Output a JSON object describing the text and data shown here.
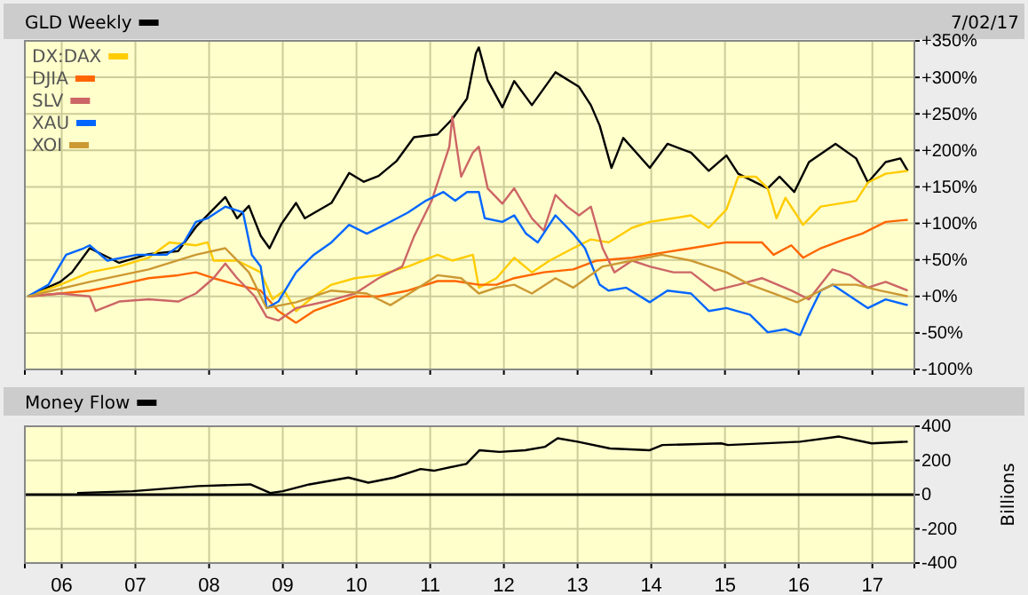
{
  "chart_data": [
    {
      "type": "line",
      "annotations": [
        "7/02/17"
      ],
      "legend": "top left",
      "grid": true,
      "tick_labels": "y",
      "xlim": [
        2005.5,
        2017.57
      ],
      "ylim": [
        -100,
        350
      ],
      "xticks": [
        2006,
        2007,
        2008,
        2009,
        2010,
        2011,
        2012,
        2013,
        2014,
        2015,
        2016,
        2017
      ],
      "yticks": [
        {
          "value": -100,
          "label": "-100%"
        },
        {
          "value": -50,
          "label": "-50%"
        },
        {
          "value": 0,
          "label": "+0%"
        },
        {
          "value": 50,
          "label": "+50%"
        },
        {
          "value": 100,
          "label": "+100%"
        },
        {
          "value": 150,
          "label": "+150%"
        },
        {
          "value": 200,
          "label": "+200%"
        },
        {
          "value": 250,
          "label": "+250%"
        },
        {
          "value": 300,
          "label": "+300%"
        },
        {
          "value": 350,
          "label": "+350%"
        }
      ],
      "series": [
        {
          "name": "GLD Weekly",
          "color": "#000000",
          "x": [
            2005.54,
            2005.98,
            2006.14,
            2006.38,
            2006.78,
            2007.18,
            2007.58,
            2007.82,
            2008.22,
            2008.38,
            2008.54,
            2008.7,
            2008.82,
            2008.98,
            2009.18,
            2009.3,
            2009.66,
            2009.9,
            2010.1,
            2010.3,
            2010.54,
            2010.78,
            2011.1,
            2011.3,
            2011.5,
            2011.62,
            2011.66,
            2011.78,
            2011.98,
            2012.14,
            2012.38,
            2012.7,
            2013.02,
            2013.18,
            2013.3,
            2013.46,
            2013.62,
            2013.98,
            2014.22,
            2014.54,
            2014.78,
            2015.02,
            2015.18,
            2015.58,
            2015.74,
            2015.94,
            2016.14,
            2016.5,
            2016.78,
            2016.94,
            2017.18,
            2017.38,
            2017.48
          ],
          "values": [
            0,
            20,
            33,
            66,
            46,
            58,
            62,
            95,
            136,
            107,
            124,
            83,
            66,
            99,
            128,
            107,
            128,
            169,
            157,
            165,
            185,
            218,
            222,
            243,
            271,
            333,
            341,
            296,
            259,
            295,
            262,
            307,
            287,
            262,
            234,
            176,
            217,
            176,
            209,
            197,
            172,
            193,
            168,
            148,
            164,
            143,
            184,
            209,
            189,
            156,
            184,
            189,
            172
          ]
        },
        {
          "name": "DX:DAX",
          "color": "#ffcc00",
          "x": [
            2005.54,
            2005.98,
            2006.38,
            2006.78,
            2007.18,
            2007.46,
            2007.82,
            2007.98,
            2008.06,
            2008.38,
            2008.7,
            2008.86,
            2009.02,
            2009.18,
            2009.42,
            2009.66,
            2009.98,
            2010.3,
            2010.7,
            2011.1,
            2011.3,
            2011.58,
            2011.66,
            2011.9,
            2012.14,
            2012.38,
            2012.62,
            2012.94,
            2013.18,
            2013.42,
            2013.74,
            2013.98,
            2014.3,
            2014.54,
            2014.78,
            2015.02,
            2015.18,
            2015.42,
            2015.58,
            2015.7,
            2015.82,
            2016.06,
            2016.3,
            2016.54,
            2016.78,
            2016.94,
            2017.18,
            2017.48
          ],
          "values": [
            0,
            16,
            33,
            41,
            53,
            74,
            70,
            74,
            49,
            49,
            33,
            -4,
            8,
            -20,
            0,
            16,
            25,
            29,
            41,
            57,
            49,
            57,
            12,
            25,
            53,
            33,
            49,
            66,
            78,
            74,
            94,
            102,
            107,
            111,
            94,
            119,
            164,
            164,
            148,
            107,
            135,
            98,
            123,
            127,
            131,
            156,
            168,
            172
          ]
        },
        {
          "name": "DJIA",
          "color": "#ff6600",
          "x": [
            2005.54,
            2005.98,
            2006.38,
            2006.78,
            2007.18,
            2007.58,
            2007.82,
            2008.06,
            2008.38,
            2008.7,
            2008.94,
            2009.18,
            2009.42,
            2009.66,
            2009.98,
            2010.3,
            2010.7,
            2011.1,
            2011.34,
            2011.66,
            2011.9,
            2012.14,
            2012.54,
            2012.94,
            2013.26,
            2013.74,
            2014.22,
            2014.54,
            2015.02,
            2015.5,
            2015.66,
            2015.9,
            2016.06,
            2016.3,
            2016.62,
            2016.86,
            2017.18,
            2017.48
          ],
          "values": [
            0,
            4,
            8,
            16,
            25,
            29,
            33,
            25,
            16,
            8,
            -20,
            -36,
            -20,
            -11,
            0,
            0,
            8,
            21,
            21,
            16,
            16,
            25,
            33,
            37,
            49,
            53,
            61,
            66,
            74,
            74,
            57,
            70,
            53,
            66,
            78,
            86,
            102,
            105
          ]
        },
        {
          "name": "SLV",
          "color": "#cc6666",
          "x": [
            2005.54,
            2005.98,
            2006.38,
            2006.46,
            2006.78,
            2007.18,
            2007.58,
            2007.82,
            2008.06,
            2008.22,
            2008.38,
            2008.62,
            2008.78,
            2008.94,
            2009.18,
            2009.58,
            2009.98,
            2010.3,
            2010.62,
            2010.78,
            2011.02,
            2011.26,
            2011.3,
            2011.42,
            2011.58,
            2011.66,
            2011.78,
            2011.98,
            2012.14,
            2012.38,
            2012.54,
            2012.7,
            2012.86,
            2013.02,
            2013.18,
            2013.34,
            2013.5,
            2013.74,
            2013.98,
            2014.3,
            2014.54,
            2014.86,
            2015.18,
            2015.5,
            2015.9,
            2016.14,
            2016.46,
            2016.7,
            2016.94,
            2017.18,
            2017.48
          ],
          "values": [
            0,
            4,
            0,
            -20,
            -7,
            -4,
            -7,
            4,
            25,
            45,
            25,
            0,
            -28,
            -33,
            -16,
            -7,
            4,
            25,
            41,
            82,
            131,
            205,
            246,
            164,
            197,
            205,
            148,
            127,
            148,
            107,
            90,
            139,
            123,
            111,
            123,
            66,
            33,
            49,
            41,
            33,
            33,
            8,
            16,
            25,
            8,
            -4,
            37,
            29,
            12,
            20,
            8
          ]
        },
        {
          "name": "XAU",
          "color": "#0066ff",
          "x": [
            2005.54,
            2005.82,
            2006.06,
            2006.3,
            2006.38,
            2006.62,
            2007.02,
            2007.42,
            2007.66,
            2007.82,
            2007.98,
            2008.22,
            2008.46,
            2008.58,
            2008.7,
            2008.78,
            2008.94,
            2009.18,
            2009.42,
            2009.66,
            2009.9,
            2010.14,
            2010.38,
            2010.7,
            2010.94,
            2011.18,
            2011.34,
            2011.5,
            2011.66,
            2011.74,
            2011.98,
            2012.14,
            2012.3,
            2012.46,
            2012.7,
            2012.94,
            2013.1,
            2013.3,
            2013.42,
            2013.66,
            2013.98,
            2014.22,
            2014.54,
            2014.78,
            2015.02,
            2015.34,
            2015.58,
            2015.82,
            2016.02,
            2016.14,
            2016.3,
            2016.46,
            2016.7,
            2016.94,
            2017.18,
            2017.48
          ],
          "values": [
            0,
            16,
            57,
            66,
            70,
            49,
            57,
            57,
            74,
            102,
            107,
            123,
            115,
            57,
            41,
            -16,
            -7,
            33,
            57,
            74,
            98,
            86,
            98,
            115,
            131,
            143,
            131,
            143,
            143,
            107,
            102,
            111,
            86,
            74,
            111,
            86,
            66,
            16,
            8,
            12,
            -8,
            8,
            4,
            -20,
            -16,
            -25,
            -49,
            -45,
            -53,
            -25,
            8,
            16,
            0,
            -16,
            -4,
            -12
          ]
        },
        {
          "name": "XOI",
          "color": "#cc9933",
          "x": [
            2005.54,
            2006.38,
            2007.18,
            2007.82,
            2008.22,
            2008.54,
            2008.78,
            2009.18,
            2009.66,
            2010.14,
            2010.46,
            2010.78,
            2011.1,
            2011.42,
            2011.66,
            2011.9,
            2012.14,
            2012.38,
            2012.7,
            2012.94,
            2013.34,
            2013.74,
            2014.14,
            2014.54,
            2014.78,
            2015.02,
            2015.34,
            2015.66,
            2015.98,
            2016.22,
            2016.46,
            2016.78,
            2017.1,
            2017.48
          ],
          "values": [
            0,
            20,
            37,
            57,
            66,
            33,
            -16,
            -8,
            8,
            4,
            -12,
            8,
            29,
            25,
            4,
            12,
            16,
            4,
            25,
            12,
            41,
            49,
            57,
            49,
            41,
            33,
            16,
            4,
            -8,
            4,
            16,
            16,
            8,
            0
          ]
        }
      ]
    },
    {
      "type": "line",
      "ylabel": "Billions",
      "legend": "top left",
      "grid": true,
      "xlim": [
        2005.5,
        2017.57
      ],
      "ylim": [
        -400,
        400
      ],
      "xticks": [
        {
          "value": 2006,
          "label": "06"
        },
        {
          "value": 2007,
          "label": "07"
        },
        {
          "value": 2008,
          "label": "08"
        },
        {
          "value": 2009,
          "label": "09"
        },
        {
          "value": 2010,
          "label": "10"
        },
        {
          "value": 2011,
          "label": "11"
        },
        {
          "value": 2012,
          "label": "12"
        },
        {
          "value": 2013,
          "label": "13"
        },
        {
          "value": 2014,
          "label": "14"
        },
        {
          "value": 2015,
          "label": "15"
        },
        {
          "value": 2016,
          "label": "16"
        },
        {
          "value": 2017,
          "label": "17"
        }
      ],
      "yticks": [
        -400,
        -200,
        0,
        200,
        400
      ],
      "ref_lines": [
        {
          "axis": "y",
          "value": 0,
          "color": "#000000"
        }
      ],
      "series": [
        {
          "name": "Money Flow",
          "color": "#000000",
          "x": [
            2006.21,
            2006.96,
            2007.85,
            2008.56,
            2008.83,
            2009.0,
            2009.36,
            2009.89,
            2010.16,
            2010.51,
            2010.87,
            2011.05,
            2011.49,
            2011.67,
            2011.94,
            2012.29,
            2012.56,
            2012.73,
            2013.0,
            2013.44,
            2013.98,
            2014.15,
            2014.95,
            2015.04,
            2016.02,
            2016.55,
            2016.99,
            2017.48
          ],
          "values": [
            10,
            20,
            50,
            60,
            10,
            20,
            60,
            100,
            70,
            100,
            150,
            140,
            180,
            260,
            250,
            260,
            280,
            330,
            310,
            270,
            260,
            290,
            300,
            290,
            310,
            340,
            300,
            310
          ]
        }
      ]
    }
  ]
}
